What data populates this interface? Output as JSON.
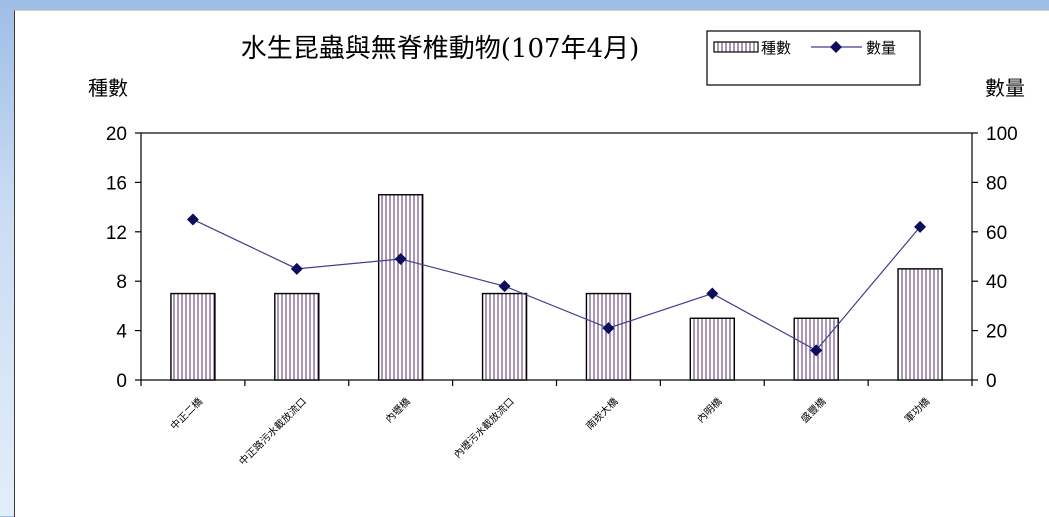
{
  "chart_data": {
    "type": "bar+line",
    "title": "水生昆蟲與無脊椎動物(107年4月)",
    "categories": [
      "中正二橋",
      "中正路污水截放流口",
      "內壢橋",
      "內壢污水截放流口",
      "南崁大橋",
      "內明橋",
      "盛豐橋",
      "軍功橋"
    ],
    "series": [
      {
        "name": "種數",
        "type": "bar",
        "axis": "left",
        "values": [
          7,
          7,
          15,
          7,
          7,
          5,
          5,
          9
        ]
      },
      {
        "name": "數量",
        "type": "line",
        "axis": "right",
        "values": [
          65,
          45,
          49,
          38,
          21,
          35,
          12,
          62
        ]
      }
    ],
    "ylabel_left": "種數",
    "ylabel_right": "數量",
    "ylim_left": [
      0,
      20
    ],
    "ylim_right": [
      0,
      100
    ],
    "yticks_left": [
      "0",
      "4",
      "8",
      "12",
      "16",
      "20"
    ],
    "yticks_right": [
      "0",
      "20",
      "40",
      "60",
      "80",
      "100"
    ],
    "legend_position": "top-right",
    "grid": false,
    "colors": {
      "bar_stroke": "#000000",
      "bar_hatch": "#5a2d6e",
      "line": "#3f3f8c",
      "marker": "#0d0d5e"
    }
  }
}
